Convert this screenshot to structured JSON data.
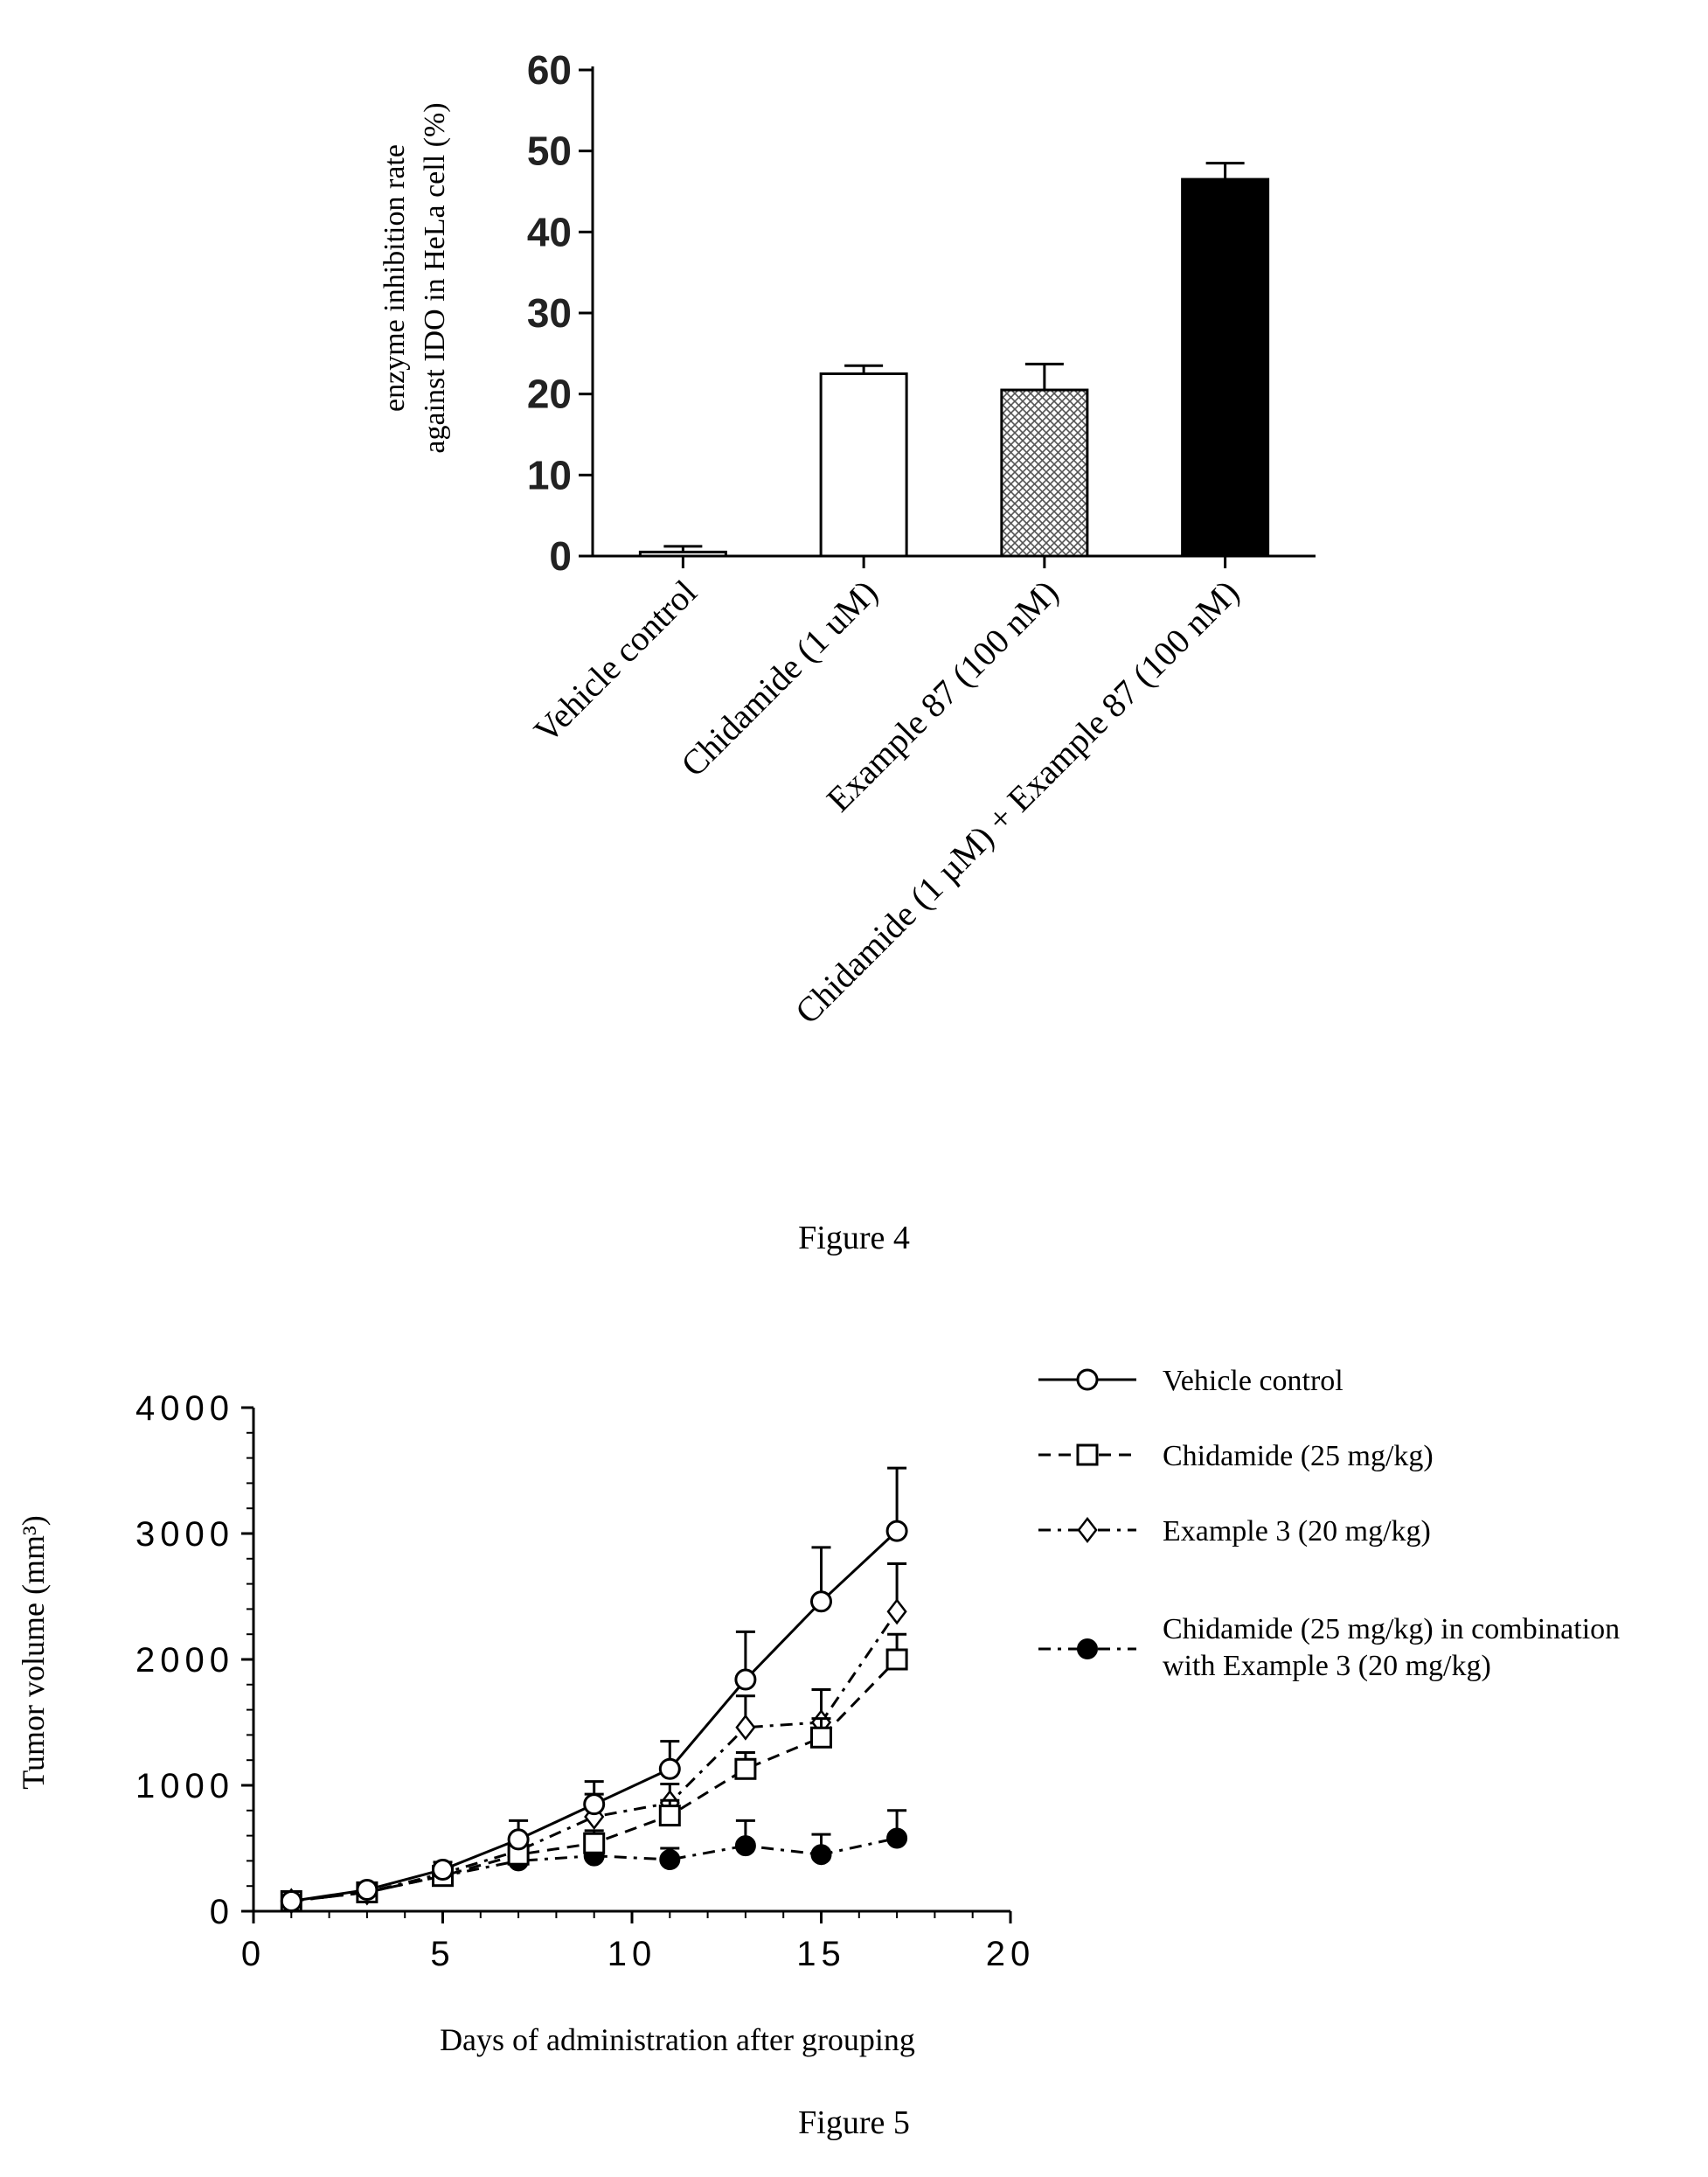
{
  "figures": [
    {
      "caption": "Figure 4"
    },
    {
      "caption": "Figure 5"
    }
  ],
  "chart_data": [
    {
      "type": "bar",
      "ylabel_line1": "enzyme inhibition rate",
      "ylabel_line2": "against IDO in HeLa cell (%)",
      "ylim": [
        0,
        60
      ],
      "yticks": [
        0,
        10,
        20,
        30,
        40,
        50,
        60
      ],
      "categories": [
        "Vehicle control",
        "Chidamide (1 uM)",
        "Example 87 (100 nM)",
        "Chidamide (1 µM) + Example 87 (100 nM)"
      ],
      "values": [
        0.5,
        22.5,
        20.5,
        46.5
      ],
      "errors": [
        0.7,
        1.0,
        3.2,
        2.0
      ],
      "fills": [
        "white",
        "white",
        "hatched",
        "black"
      ],
      "grid": false
    },
    {
      "type": "line",
      "xlabel": "Days of administration after grouping",
      "ylabel": "Tumor volume (mm³)",
      "xlim": [
        0,
        20
      ],
      "ylim": [
        0,
        4000
      ],
      "xticks": [
        0,
        5,
        10,
        15,
        20
      ],
      "yticks": [
        0,
        1000,
        2000,
        3000,
        4000
      ],
      "x": [
        1,
        3,
        5,
        7,
        9,
        11,
        13,
        15,
        17
      ],
      "legend_position": "top-right",
      "grid": false,
      "series": [
        {
          "name": "Vehicle control",
          "marker": "circle-open",
          "line": "solid",
          "values": [
            80,
            170,
            330,
            570,
            850,
            1130,
            1840,
            2460,
            3020
          ],
          "errors": [
            20,
            40,
            60,
            150,
            180,
            220,
            380,
            430,
            500
          ]
        },
        {
          "name": "Chidamide (25 mg/kg)",
          "marker": "square-open",
          "line": "dashed",
          "values": [
            80,
            150,
            280,
            450,
            540,
            760,
            1130,
            1380,
            2000
          ],
          "errors": [
            15,
            30,
            40,
            80,
            100,
            120,
            130,
            150,
            200
          ]
        },
        {
          "name": "Example 3 (20 mg/kg)",
          "marker": "diamond-open",
          "line": "dashdot",
          "values": [
            80,
            150,
            300,
            480,
            750,
            860,
            1460,
            1500,
            2380
          ],
          "errors": [
            15,
            30,
            40,
            80,
            180,
            150,
            250,
            260,
            380
          ]
        },
        {
          "name_line1": "Chidamide (25 mg/kg) in combination",
          "name_line2": "with Example 3 (20 mg/kg)",
          "marker": "circle-filled",
          "line": "dashdot",
          "values": [
            80,
            150,
            280,
            400,
            440,
            410,
            520,
            450,
            580
          ],
          "errors": [
            15,
            25,
            40,
            60,
            60,
            90,
            200,
            160,
            220
          ]
        }
      ]
    }
  ]
}
